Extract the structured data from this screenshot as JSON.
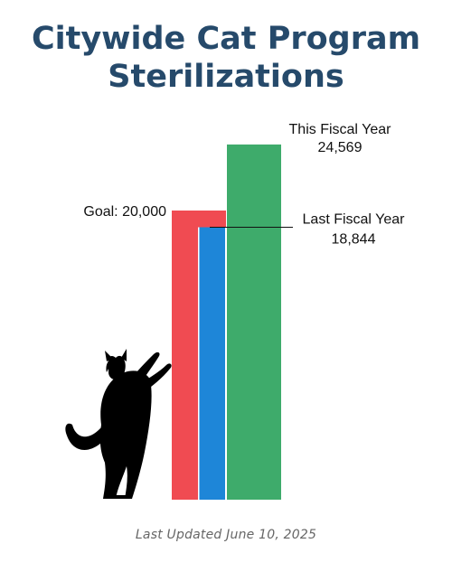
{
  "title_line1": "Citywide Cat Program",
  "title_line2": "Sterilizations",
  "footer": "Last Updated June 10, 2025",
  "colors": {
    "title": "#264a6b",
    "goal": "#f04b52",
    "last_fiscal_year": "#1e86d8",
    "this_fiscal_year": "#3eab6b",
    "silhouette": "#000000"
  },
  "chart_data": {
    "type": "bar",
    "title": "Citywide Cat Program Sterilizations",
    "grid": false,
    "ylim": [
      0,
      25500
    ],
    "series": [
      {
        "name": "Goal",
        "label": "Goal: 20,000",
        "value": 20000,
        "color": "#f04b52"
      },
      {
        "name": "Last Fiscal Year",
        "label_line1": "Last Fiscal Year",
        "label_line2": "18,844",
        "value": 18844,
        "color": "#1e86d8"
      },
      {
        "name": "This Fiscal Year",
        "label_line1": "This Fiscal Year",
        "label_line2": "24,569",
        "value": 24569,
        "color": "#3eab6b"
      }
    ]
  },
  "decoration": {
    "icon": "cat-silhouette-icon"
  }
}
